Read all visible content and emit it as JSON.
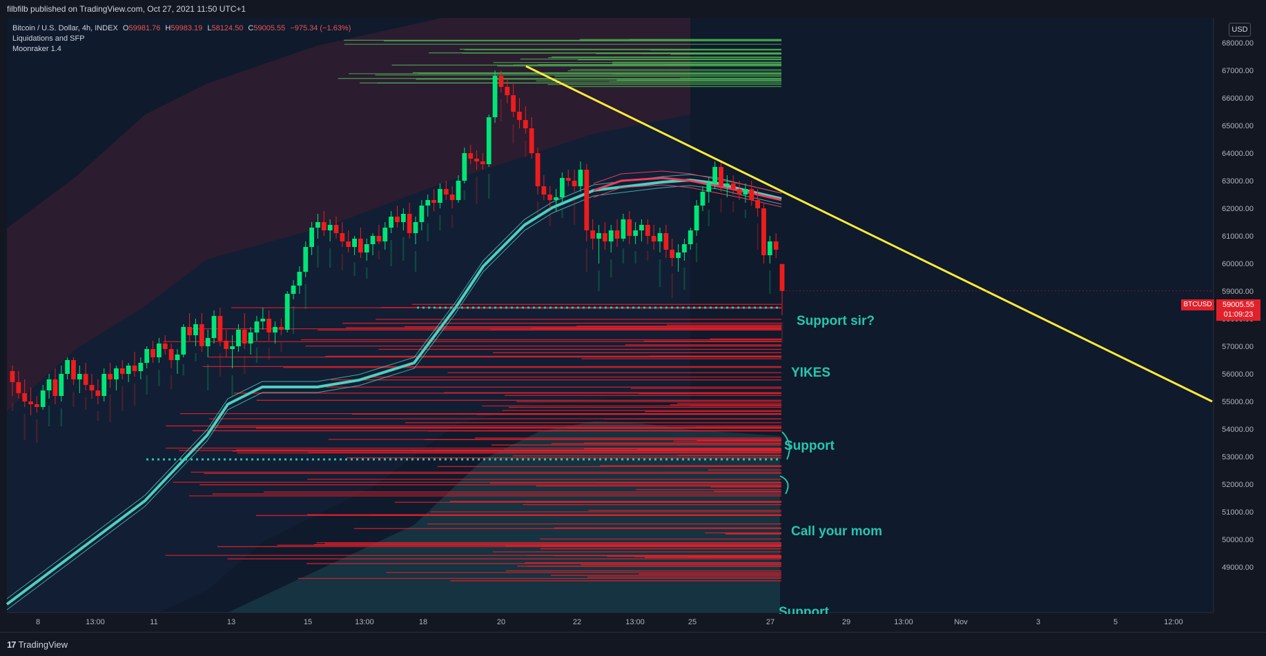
{
  "header": {
    "published": "filbfilb published on TradingView.com, Oct 27, 2021 11:50 UTC+1"
  },
  "legend": {
    "symbol": "Bitcoin / U.S. Dollar, 4h, INDEX",
    "o_label": "O",
    "o": "59981.76",
    "h_label": "H",
    "h": "59983.19",
    "l_label": "L",
    "l": "58124.50",
    "c_label": "C",
    "c": "59005.55",
    "change": "−975.34 (−1.63%)",
    "indicator1": "Liquidations and SFP",
    "indicator2": "Moonraker 1.4"
  },
  "currency": "USD",
  "price_badge": {
    "symbol": "BTCUSD",
    "price": "59005.55",
    "countdown": "01:09:23"
  },
  "annotations": {
    "support_sir": "Support sir?",
    "yikes": "YIKES",
    "support": "Support",
    "call_mom": "Call your mom",
    "support_cut": "Support"
  },
  "footer": {
    "brand": "TradingView"
  },
  "colors": {
    "background": "#131722",
    "up": "#00e676",
    "down": "#ef1c1c",
    "trendline": "#ffeb3b",
    "ribbon": "#4dd0c0",
    "liquidation_red": "#e0202a",
    "liquidation_green": "#4caf50",
    "annotation": "#26c6b0"
  },
  "chart_data": {
    "type": "candlestick",
    "timeframe": "4h",
    "y_axis_labels": [
      "68000.00",
      "67000.00",
      "66000.00",
      "65000.00",
      "64000.00",
      "63000.00",
      "62000.00",
      "61000.00",
      "60000.00",
      "59000.00",
      "58000.00",
      "57000.00",
      "56000.00",
      "55000.00",
      "54000.00",
      "53000.00",
      "52000.00",
      "51000.00",
      "50000.00",
      "49000.00"
    ],
    "ylim": [
      48400,
      68800
    ],
    "x_axis_labels": [
      "8",
      "13:00",
      "11",
      "13",
      "15",
      "13:00",
      "18",
      "20",
      "22",
      "13:00",
      "25",
      "27",
      "29",
      "13:00",
      "Nov",
      "3",
      "5",
      "12:00"
    ],
    "last_close": 59005.55,
    "candles_ohlc": [
      [
        56100,
        56300,
        55200,
        55700
      ],
      [
        55700,
        56100,
        55100,
        55300
      ],
      [
        55300,
        55800,
        54800,
        55000
      ],
      [
        55000,
        55500,
        54500,
        54900
      ],
      [
        54900,
        55200,
        54600,
        54800
      ],
      [
        54800,
        55600,
        54700,
        55400
      ],
      [
        55400,
        56000,
        55100,
        55800
      ],
      [
        55800,
        56200,
        54900,
        55200
      ],
      [
        55200,
        56300,
        55000,
        56000
      ],
      [
        56000,
        56600,
        55800,
        56500
      ],
      [
        56500,
        56600,
        55600,
        55800
      ],
      [
        55800,
        56300,
        55300,
        56000
      ],
      [
        56000,
        56400,
        55400,
        55600
      ],
      [
        55600,
        56000,
        55100,
        55400
      ],
      [
        55400,
        55800,
        54900,
        55200
      ],
      [
        55200,
        56200,
        55000,
        56000
      ],
      [
        56000,
        56400,
        55500,
        55800
      ],
      [
        55800,
        56300,
        55400,
        56200
      ],
      [
        56200,
        56500,
        55800,
        56000
      ],
      [
        56000,
        56400,
        55700,
        56300
      ],
      [
        56300,
        56800,
        55900,
        56100
      ],
      [
        56100,
        56600,
        55800,
        56400
      ],
      [
        56400,
        57000,
        56200,
        56900
      ],
      [
        56900,
        57200,
        56400,
        56600
      ],
      [
        56600,
        57300,
        56400,
        57100
      ],
      [
        57100,
        57400,
        56700,
        56900
      ],
      [
        56900,
        57100,
        56200,
        56500
      ],
      [
        56500,
        56900,
        56000,
        56700
      ],
      [
        56700,
        57800,
        56600,
        57700
      ],
      [
        57700,
        58200,
        57200,
        57400
      ],
      [
        57400,
        58000,
        57000,
        57800
      ],
      [
        57800,
        58200,
        56800,
        57000
      ],
      [
        57000,
        57600,
        56600,
        57300
      ],
      [
        57300,
        58300,
        57100,
        58100
      ],
      [
        58100,
        58400,
        57000,
        57200
      ],
      [
        57200,
        57600,
        56600,
        56900
      ],
      [
        56900,
        57400,
        56200,
        57000
      ],
      [
        57000,
        57800,
        56800,
        57600
      ],
      [
        57600,
        58200,
        56900,
        57100
      ],
      [
        57100,
        57700,
        56700,
        57500
      ],
      [
        57500,
        58100,
        57200,
        57900
      ],
      [
        57900,
        58400,
        57600,
        58000
      ],
      [
        58000,
        58300,
        57200,
        57500
      ],
      [
        57500,
        57900,
        57100,
        57700
      ],
      [
        57700,
        58000,
        57400,
        57600
      ],
      [
        57600,
        59000,
        57500,
        58900
      ],
      [
        58900,
        59400,
        58700,
        59200
      ],
      [
        59200,
        59900,
        58900,
        59700
      ],
      [
        59700,
        60800,
        59500,
        60600
      ],
      [
        60600,
        61500,
        60300,
        61300
      ],
      [
        61300,
        61800,
        60900,
        61500
      ],
      [
        61500,
        61900,
        61000,
        61200
      ],
      [
        61200,
        61600,
        60800,
        61400
      ],
      [
        61400,
        61700,
        60900,
        61100
      ],
      [
        61100,
        61500,
        60600,
        60800
      ],
      [
        60800,
        61200,
        60400,
        60600
      ],
      [
        60600,
        61000,
        60300,
        60900
      ],
      [
        60900,
        61300,
        60200,
        60400
      ],
      [
        60400,
        60900,
        60100,
        60700
      ],
      [
        60700,
        61100,
        60300,
        61000
      ],
      [
        61000,
        61400,
        60700,
        60800
      ],
      [
        60800,
        61500,
        60500,
        61300
      ],
      [
        61300,
        61900,
        61100,
        61700
      ],
      [
        61700,
        62100,
        61300,
        61500
      ],
      [
        61500,
        62000,
        61200,
        61800
      ],
      [
        61800,
        62200,
        60900,
        61100
      ],
      [
        61100,
        61700,
        60700,
        61500
      ],
      [
        61500,
        62300,
        61200,
        62100
      ],
      [
        62100,
        62500,
        61700,
        62300
      ],
      [
        62300,
        62700,
        61900,
        62200
      ],
      [
        62200,
        62900,
        62000,
        62700
      ],
      [
        62700,
        63000,
        62300,
        62500
      ],
      [
        62500,
        62800,
        62000,
        62300
      ],
      [
        62300,
        63200,
        62200,
        63000
      ],
      [
        63000,
        64200,
        62900,
        64000
      ],
      [
        64000,
        64300,
        63600,
        63800
      ],
      [
        63800,
        64100,
        63400,
        63700
      ],
      [
        63700,
        64000,
        63400,
        63600
      ],
      [
        63600,
        65400,
        63500,
        65300
      ],
      [
        65300,
        67000,
        65100,
        66800
      ],
      [
        66800,
        67000,
        66200,
        66400
      ],
      [
        66400,
        66700,
        65800,
        66100
      ],
      [
        66100,
        66500,
        65300,
        65500
      ],
      [
        65500,
        66000,
        64900,
        65200
      ],
      [
        65200,
        65700,
        64700,
        64900
      ],
      [
        64900,
        65300,
        63800,
        64000
      ],
      [
        64000,
        64200,
        62500,
        62800
      ],
      [
        62800,
        63200,
        62300,
        62500
      ],
      [
        62500,
        62800,
        62000,
        62300
      ],
      [
        62300,
        62700,
        61900,
        62400
      ],
      [
        62400,
        63300,
        62200,
        63100
      ],
      [
        63100,
        63400,
        62800,
        63000
      ],
      [
        63000,
        63400,
        62600,
        62800
      ],
      [
        62800,
        63700,
        62600,
        63400
      ],
      [
        63400,
        63600,
        60800,
        61200
      ],
      [
        61200,
        61600,
        60500,
        60900
      ],
      [
        60900,
        61400,
        60000,
        61100
      ],
      [
        61100,
        61500,
        60500,
        60800
      ],
      [
        60800,
        61400,
        60400,
        61200
      ],
      [
        61200,
        61600,
        60600,
        60900
      ],
      [
        60900,
        61800,
        60800,
        61600
      ],
      [
        61600,
        61900,
        60700,
        61000
      ],
      [
        61000,
        61500,
        60700,
        61200
      ],
      [
        61200,
        61600,
        60800,
        61400
      ],
      [
        61400,
        61600,
        60700,
        61000
      ],
      [
        61000,
        61400,
        60500,
        60800
      ],
      [
        60800,
        61300,
        60400,
        61100
      ],
      [
        61100,
        61400,
        60200,
        60500
      ],
      [
        60500,
        60900,
        59900,
        60200
      ],
      [
        60200,
        60700,
        59700,
        60400
      ],
      [
        60400,
        60900,
        60100,
        60700
      ],
      [
        60700,
        61300,
        60500,
        61200
      ],
      [
        61200,
        62300,
        61000,
        62100
      ],
      [
        62100,
        62800,
        61900,
        62600
      ],
      [
        62600,
        63100,
        62200,
        62900
      ],
      [
        62900,
        63700,
        62700,
        63500
      ],
      [
        63500,
        63700,
        62600,
        62800
      ],
      [
        62800,
        63200,
        62400,
        62900
      ],
      [
        62900,
        63200,
        62500,
        62700
      ],
      [
        62700,
        63000,
        62300,
        62500
      ],
      [
        62500,
        62900,
        62200,
        62700
      ],
      [
        62700,
        63000,
        62100,
        62300
      ],
      [
        62300,
        62700,
        61700,
        62000
      ],
      [
        62000,
        62200,
        60000,
        60300
      ],
      [
        60300,
        61000,
        60000,
        60800
      ],
      [
        60800,
        61100,
        60200,
        60500
      ],
      [
        59982,
        59983,
        58125,
        59006
      ]
    ],
    "trendline": {
      "from": [
        0.655,
        67150
      ],
      "to": [
        1.0,
        55000
      ]
    },
    "dotted_support_levels": [
      58400,
      52900
    ]
  }
}
